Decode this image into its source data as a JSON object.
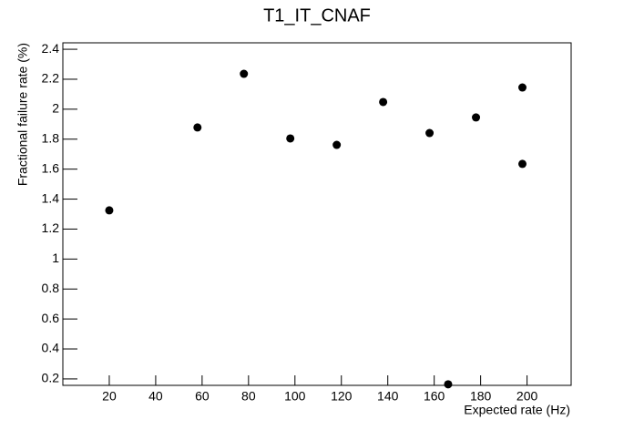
{
  "chart_data": {
    "type": "scatter",
    "title": "T1_IT_CNAF",
    "x_label": "Expected rate (Hz)",
    "y_label": "Fractional failure rate (%)",
    "series": [
      {
        "color": "#000000",
        "x": [
          20,
          58,
          78,
          98,
          118,
          138,
          158,
          166,
          178,
          198,
          198
        ],
        "values": [
          1.325,
          1.878,
          2.236,
          1.805,
          1.762,
          2.048,
          1.841,
          0.164,
          1.945,
          2.145,
          1.635
        ]
      }
    ],
    "xlim": [
      0,
      219
    ],
    "xticks": [
      20,
      40,
      60,
      80,
      100,
      120,
      140,
      160,
      180,
      200
    ],
    "ylim": [
      0.157,
      2.443
    ],
    "yticks": [
      0.2,
      0.4,
      0.6,
      0.8,
      1,
      1.2,
      1.4,
      1.6,
      1.8,
      2,
      2.2,
      2.4
    ]
  }
}
